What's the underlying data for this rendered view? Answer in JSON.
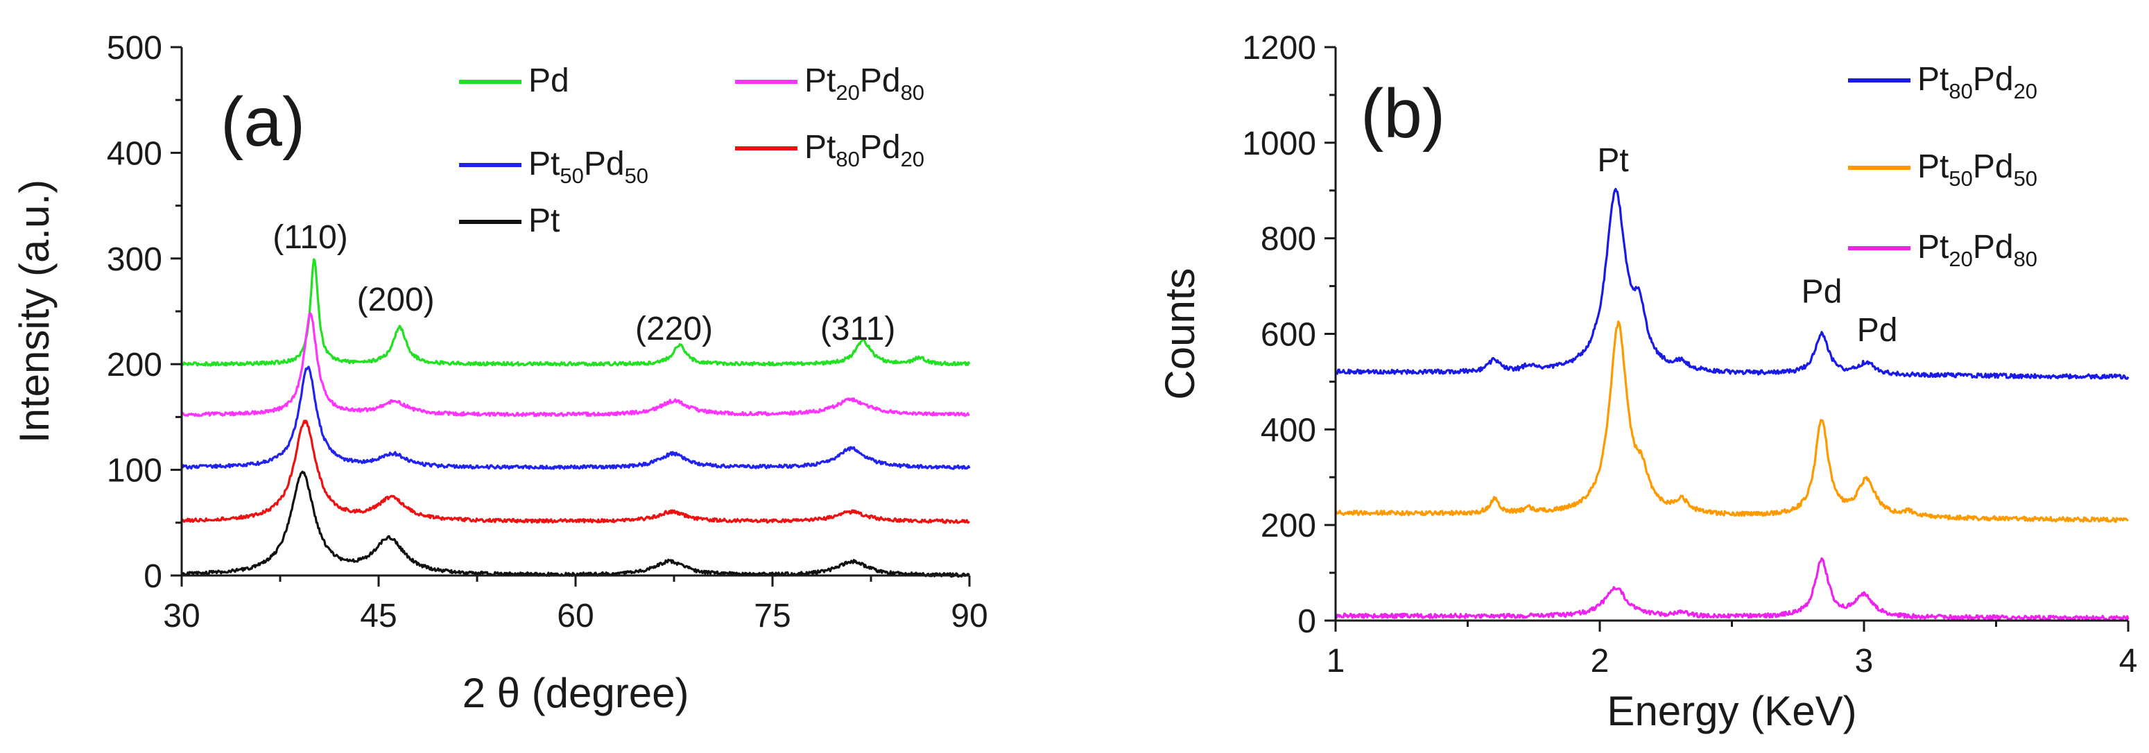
{
  "chart_data": [
    {
      "panel": "(a)",
      "type": "line",
      "title": "",
      "xlabel": "2 θ (degree)",
      "ylabel": "Intensity (a.u.)",
      "xlim": [
        30,
        90
      ],
      "ylim": [
        0,
        500
      ],
      "xticks": [
        30,
        45,
        60,
        75,
        90
      ],
      "yticks": [
        0,
        100,
        200,
        300,
        400,
        500
      ],
      "legend_position": "top-right",
      "peak_labels": [
        {
          "text": "(110)",
          "x": 39.8
        },
        {
          "text": "(200)",
          "x": 46.3
        },
        {
          "text": "(220)",
          "x": 67.5
        },
        {
          "text": "(311)",
          "x": 81.5
        }
      ],
      "series": [
        {
          "name": "Pd",
          "legend": {
            "base": "Pd"
          },
          "color": "#22e022",
          "baseline": 200,
          "peaks": [
            [
              40.1,
              100,
              0.35
            ],
            [
              46.6,
              35,
              0.6
            ],
            [
              67.9,
              18,
              0.6
            ],
            [
              81.9,
              22,
              0.7
            ],
            [
              86.2,
              6,
              0.5
            ]
          ]
        },
        {
          "name": "Pt20Pd80",
          "legend": {
            "parts": [
              "Pt",
              "20",
              "Pd",
              "80"
            ]
          },
          "color": "#ff33ff",
          "baseline": 152,
          "peaks": [
            [
              39.8,
              95,
              0.6
            ],
            [
              46.2,
              12,
              1.2
            ],
            [
              67.5,
              13,
              1.3
            ],
            [
              81.0,
              14,
              1.5
            ]
          ]
        },
        {
          "name": "Pt50Pd50",
          "legend": {
            "parts": [
              "Pt",
              "50",
              "Pd",
              "50"
            ]
          },
          "color": "#2222ee",
          "baseline": 102,
          "peaks": [
            [
              39.6,
              95,
              0.8
            ],
            [
              46.1,
              12,
              1.2
            ],
            [
              67.4,
              13,
              1.2
            ],
            [
              81.0,
              18,
              1.3
            ]
          ]
        },
        {
          "name": "Pt80Pd20",
          "legend": {
            "parts": [
              "Pt",
              "80",
              "Pd",
              "20"
            ]
          },
          "color": "#ee1111",
          "baseline": 51,
          "peaks": [
            [
              39.4,
              94,
              1.0
            ],
            [
              46.0,
              21,
              1.3
            ],
            [
              67.3,
              9,
              1.3
            ],
            [
              81.0,
              9,
              1.4
            ]
          ]
        },
        {
          "name": "Pt",
          "legend": {
            "base": "Pt"
          },
          "color": "#111111",
          "baseline": 0,
          "peaks": [
            [
              39.2,
              96,
              1.1
            ],
            [
              45.8,
              33,
              1.4
            ],
            [
              67.2,
              13,
              1.4
            ],
            [
              81.1,
              13,
              1.4
            ]
          ]
        }
      ]
    },
    {
      "panel": "(b)",
      "type": "line",
      "title": "",
      "xlabel": "Energy (KeV)",
      "ylabel": "Counts",
      "xlim": [
        1,
        4
      ],
      "ylim": [
        0,
        1200
      ],
      "xticks": [
        1,
        2,
        3,
        4
      ],
      "yticks": [
        0,
        200,
        400,
        600,
        800,
        1000,
        1200
      ],
      "legend_position": "top-right",
      "peak_labels": [
        {
          "text": "Pt",
          "x": 2.05,
          "y": 940
        },
        {
          "text": "Pd",
          "x": 2.84,
          "y": 665
        },
        {
          "text": "Pd",
          "x": 3.05,
          "y": 585
        }
      ],
      "series": [
        {
          "name": "Pt80Pd20",
          "legend": {
            "parts": [
              "Pt",
              "80",
              "Pd",
              "20"
            ]
          },
          "color": "#1a1ae6",
          "baseline": 520,
          "end_value": 510,
          "peaks": [
            [
              1.6,
              25,
              0.025
            ],
            [
              1.73,
              12,
              0.02
            ],
            [
              2.06,
              375,
              0.045
            ],
            [
              2.15,
              100,
              0.03
            ],
            [
              2.31,
              15,
              0.03
            ],
            [
              2.84,
              85,
              0.03
            ],
            [
              3.01,
              25,
              0.035
            ]
          ]
        },
        {
          "name": "Pt50Pd50",
          "legend": {
            "parts": [
              "Pt",
              "50",
              "Pd",
              "50"
            ]
          },
          "color": "#ff9900",
          "baseline": 225,
          "end_value": 210,
          "peaks": [
            [
              1.6,
              30,
              0.02
            ],
            [
              1.73,
              10,
              0.02
            ],
            [
              2.07,
              395,
              0.04
            ],
            [
              2.16,
              60,
              0.03
            ],
            [
              2.31,
              25,
              0.03
            ],
            [
              2.84,
              200,
              0.03
            ],
            [
              3.01,
              75,
              0.04
            ],
            [
              3.17,
              10,
              0.03
            ]
          ]
        },
        {
          "name": "Pt20Pd80",
          "legend": {
            "parts": [
              "Pt",
              "20",
              "Pd",
              "80"
            ]
          },
          "color": "#ee22ee",
          "baseline": 10,
          "end_value": 5,
          "peaks": [
            [
              2.06,
              60,
              0.05
            ],
            [
              2.31,
              8,
              0.03
            ],
            [
              2.84,
              120,
              0.03
            ],
            [
              3.0,
              45,
              0.04
            ]
          ]
        }
      ]
    }
  ]
}
